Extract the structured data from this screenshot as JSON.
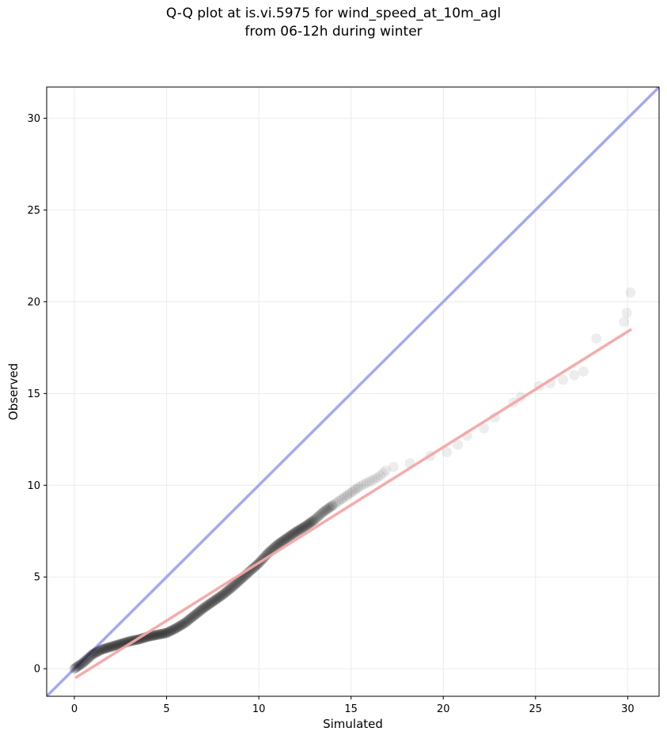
{
  "chart_data": {
    "type": "scatter",
    "title_lines": [
      "Q-Q plot at is.vi.5975 for wind_speed_at_10m_agl",
      "from 06-12h during winter"
    ],
    "xlabel": "Simulated",
    "ylabel": "Observed",
    "xlim": [
      -1.5,
      31.7
    ],
    "ylim": [
      -1.5,
      31.7
    ],
    "xticks": [
      0,
      5,
      10,
      15,
      20,
      25,
      30
    ],
    "yticks": [
      0,
      5,
      10,
      15,
      20,
      25,
      30
    ],
    "grid": true,
    "colors": {
      "points": "#000000",
      "identity_line": "#a6a8f4",
      "fit_line": "#f4a6a6",
      "frame": "#000000",
      "grid": "#ebebeb"
    },
    "quantile_curve": [
      [
        0.0,
        0.0
      ],
      [
        0.5,
        0.35
      ],
      [
        1.0,
        0.8
      ],
      [
        1.5,
        1.05
      ],
      [
        2.0,
        1.2
      ],
      [
        2.5,
        1.35
      ],
      [
        3.0,
        1.5
      ],
      [
        3.5,
        1.6
      ],
      [
        4.0,
        1.75
      ],
      [
        4.5,
        1.85
      ],
      [
        5.0,
        1.95
      ],
      [
        5.5,
        2.2
      ],
      [
        6.0,
        2.5
      ],
      [
        6.5,
        2.9
      ],
      [
        7.0,
        3.3
      ],
      [
        7.5,
        3.65
      ],
      [
        8.0,
        4.0
      ],
      [
        8.5,
        4.4
      ],
      [
        9.0,
        4.85
      ],
      [
        9.5,
        5.3
      ],
      [
        10.0,
        5.75
      ],
      [
        10.5,
        6.3
      ],
      [
        11.0,
        6.75
      ],
      [
        11.5,
        7.1
      ],
      [
        12.0,
        7.45
      ],
      [
        12.5,
        7.75
      ],
      [
        13.0,
        8.1
      ],
      [
        13.5,
        8.55
      ],
      [
        14.0,
        8.9
      ],
      [
        14.5,
        9.25
      ],
      [
        15.0,
        9.6
      ],
      [
        15.5,
        9.95
      ],
      [
        16.0,
        10.2
      ],
      [
        16.5,
        10.45
      ],
      [
        17.0,
        10.9
      ],
      [
        17.5,
        11.1
      ],
      [
        18.0,
        11.3
      ],
      [
        19.0,
        11.55
      ],
      [
        20.0,
        11.85
      ],
      [
        20.5,
        12.05
      ],
      [
        21.0,
        12.4
      ],
      [
        21.5,
        12.8
      ],
      [
        22.0,
        13.0
      ],
      [
        22.5,
        13.3
      ],
      [
        23.0,
        14.1
      ],
      [
        23.5,
        14.3
      ],
      [
        24.0,
        14.6
      ],
      [
        25.0,
        15.3
      ],
      [
        26.0,
        15.6
      ],
      [
        27.0,
        15.9
      ],
      [
        27.5,
        16.1
      ],
      [
        27.8,
        16.6
      ],
      [
        28.0,
        17.3
      ],
      [
        28.2,
        17.9
      ],
      [
        28.3,
        18.5
      ],
      [
        29.8,
        18.9
      ],
      [
        29.95,
        19.4
      ],
      [
        30.15,
        20.5
      ]
    ],
    "sparse_points": [
      [
        17.3,
        11.0
      ],
      [
        18.2,
        11.2
      ],
      [
        19.3,
        11.6
      ],
      [
        20.2,
        11.8
      ],
      [
        20.8,
        12.2
      ],
      [
        21.3,
        12.7
      ],
      [
        22.2,
        13.1
      ],
      [
        22.8,
        13.7
      ],
      [
        23.8,
        14.5
      ],
      [
        24.2,
        14.8
      ],
      [
        25.2,
        15.4
      ],
      [
        25.8,
        15.55
      ],
      [
        26.5,
        15.75
      ],
      [
        27.1,
        16.0
      ],
      [
        27.6,
        16.2
      ],
      [
        28.3,
        18.0
      ],
      [
        29.8,
        18.9
      ],
      [
        29.95,
        19.4
      ],
      [
        30.15,
        20.5
      ]
    ],
    "fit_line": {
      "x": [
        0.05,
        30.2
      ],
      "y": [
        -0.5,
        18.5
      ]
    },
    "identity_line": {
      "x": [
        -1.5,
        31.7
      ],
      "y": [
        -1.5,
        31.7
      ]
    }
  }
}
